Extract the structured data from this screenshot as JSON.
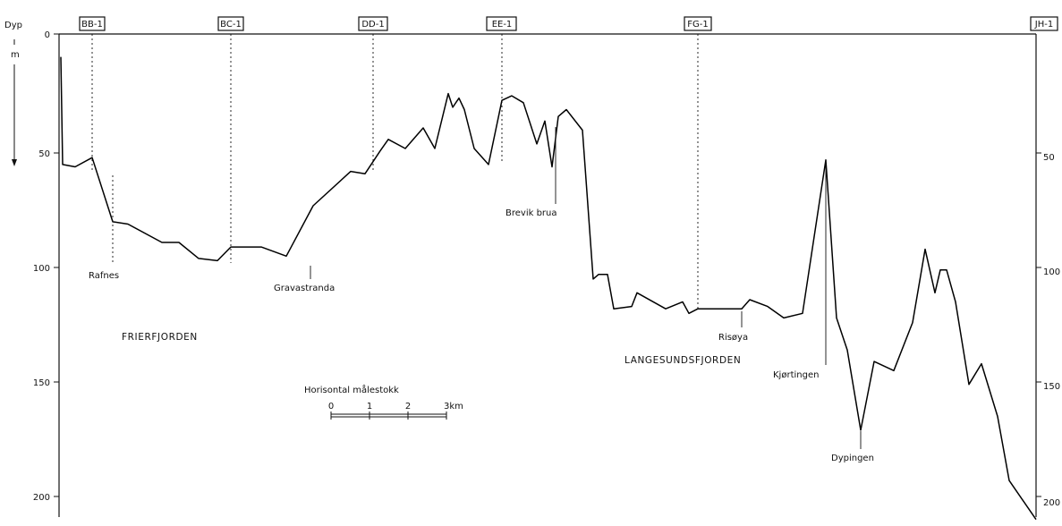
{
  "axis": {
    "left_title": "Dyp",
    "left_unit": "m",
    "left_ticks": [
      "0",
      "50",
      "100",
      "150",
      "200"
    ],
    "right_ticks": [
      "50",
      "100",
      "150",
      "200"
    ],
    "depth_range": [
      0,
      212
    ]
  },
  "stations": [
    "BB-1",
    "BC-1",
    "DD-1",
    "EE-1",
    "FG-1",
    "JH-1"
  ],
  "places": [
    "Rafnes",
    "Gravastranda",
    "Brevik brua",
    "Risøya",
    "Kjørtingen",
    "Dypingen"
  ],
  "regions": [
    "FRIERFJORDEN",
    "LANGESUNDSFJORDEN"
  ],
  "scale_bar": {
    "title": "Horisontal målestokk",
    "labels": [
      "0",
      "1",
      "2",
      "3km"
    ]
  },
  "profile_depths_m": [
    10,
    57,
    58,
    54,
    82,
    83,
    91,
    91,
    98,
    99,
    93,
    93,
    97,
    75,
    60,
    61,
    51,
    46,
    50,
    41,
    50,
    26,
    32,
    28,
    33,
    50,
    57,
    29,
    27,
    30,
    48,
    38,
    58,
    36,
    33,
    42,
    107,
    105,
    105,
    120,
    119,
    113,
    120,
    117,
    122,
    120,
    120,
    120,
    116,
    119,
    124,
    122,
    55,
    124,
    138,
    173,
    143,
    147,
    126,
    94,
    113,
    103,
    103,
    117,
    153,
    144,
    167,
    195,
    212
  ],
  "colors": {
    "ink": "#111111",
    "paper": "#ffffff"
  }
}
